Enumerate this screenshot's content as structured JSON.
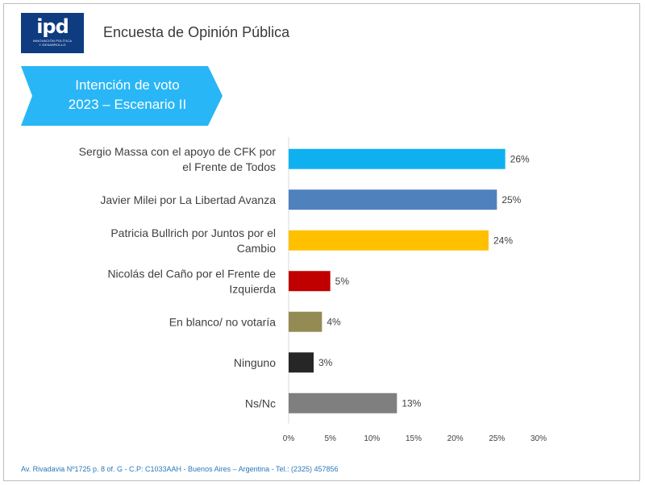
{
  "header": {
    "logo_text": "ipd",
    "logo_sub_1": "Innovación Política",
    "logo_sub_2": "y Desarrollo",
    "title": "Encuesta de Opinión Pública"
  },
  "banner": {
    "line1": "Intención de voto",
    "line2": "2023 – Escenario II",
    "color": "#29b6f6"
  },
  "chart_data": {
    "type": "bar",
    "orientation": "horizontal",
    "categories": [
      [
        "Sergio Massa con el apoyo de CFK por",
        "el Frente de Todos"
      ],
      [
        "Javier Milei por La Libertad Avanza"
      ],
      [
        "Patricia Bullrich por Juntos por el",
        "Cambio"
      ],
      [
        "Nicolás del Caño por el Frente de",
        "Izquierda"
      ],
      [
        "En blanco/ no votaría"
      ],
      [
        "Ninguno"
      ],
      [
        "Ns/Nc"
      ]
    ],
    "values": [
      26,
      25,
      24,
      5,
      4,
      3,
      13
    ],
    "value_labels": [
      "26%",
      "25%",
      "24%",
      "5%",
      "4%",
      "3%",
      "13%"
    ],
    "colors": [
      "#0fb0f0",
      "#4f81bd",
      "#ffc000",
      "#c00000",
      "#948a54",
      "#262626",
      "#7f7f7f"
    ],
    "xlim": [
      0,
      30
    ],
    "xticks": [
      "0%",
      "5%",
      "10%",
      "15%",
      "20%",
      "25%",
      "30%"
    ],
    "title": "",
    "xlabel": "",
    "ylabel": "",
    "grid": false
  },
  "footer": {
    "text": "Av. Rivadavia Nº1725 p. 8 of. G - C.P: C1033AAH - Buenos Aires – Argentina - Tel.: (2325) 457856"
  }
}
